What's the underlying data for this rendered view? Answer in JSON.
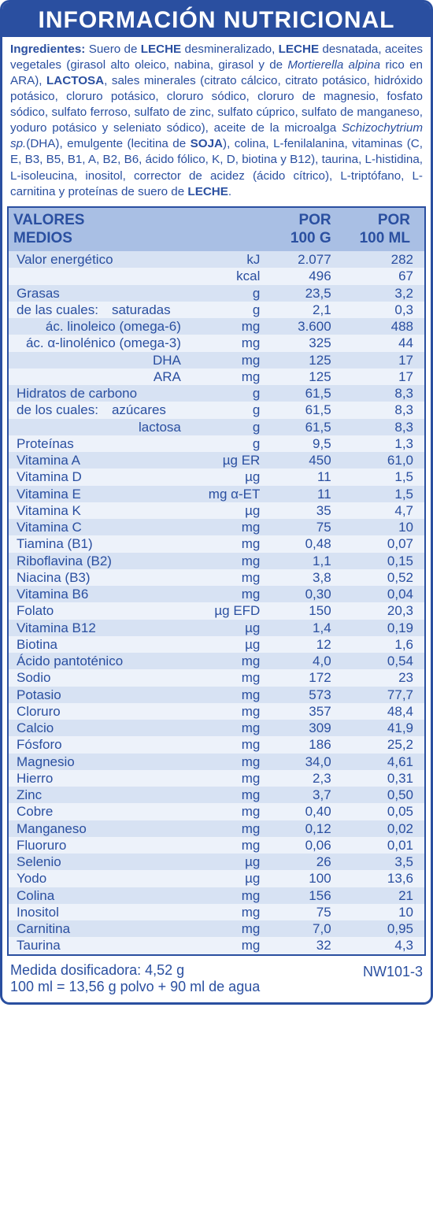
{
  "title": "INFORMACIÓN NUTRICIONAL",
  "ingredients_label": "Ingredientes:",
  "ingredients_html": "Suero de <b>LECHE</b> desmineralizado, <b>LECHE</b> desnatada, aceites vegetales (girasol alto oleico, nabina, girasol y de <i>Mortierella alpina</i> rico en ARA), <b>LACTOSA</b>, sales minerales (citrato cálcico, citrato potásico, hidróxido potásico, cloruro potásico, cloruro sódico, cloruro de magnesio, fosfato sódico, sulfato ferroso, sulfato de zinc, sulfato cúprico, sulfato de manganeso, yoduro potásico y seleniato sódico), aceite de la microalga <i>Schizochytrium sp.</i>(DHA), emulgente (lecitina de <b>SOJA</b>), colina, L-fenilalanina,  vitaminas (C, E, B3, B5, B1, A, B2, B6, ácido fólico, K, D, biotina y B12), taurina, L-histidina, L-isoleucina, inositol, corrector de acidez (ácido cítrico), L-triptófano, L-carnitina y proteínas de suero de <b>LECHE</b>.",
  "header": {
    "col1_line1": "VALORES",
    "col1_line2": "MEDIOS",
    "col3_line1": "POR",
    "col3_line2": "100 G",
    "col4_line1": "POR",
    "col4_line2": "100 ML"
  },
  "rows": [
    {
      "label": "Valor energético",
      "unit": "kJ",
      "g": "2.077",
      "ml": "282"
    },
    {
      "label": "",
      "unit": "kcal",
      "g": "496",
      "ml": "67"
    },
    {
      "label": "Grasas",
      "unit": "g",
      "g": "23,5",
      "ml": "3,2"
    },
    {
      "label": "de las cuales: saturadas",
      "unit": "g",
      "g": "2,1",
      "ml": "0,3"
    },
    {
      "label": "ác. linoleico (omega-6)",
      "indent": "sub2",
      "unit": "mg",
      "g": "3.600",
      "ml": "488",
      "align": "right"
    },
    {
      "label": "ác. α-linolénico (omega-3)",
      "indent": "sub2",
      "unit": "mg",
      "g": "325",
      "ml": "44",
      "align": "right"
    },
    {
      "label": "DHA",
      "indent": "sub2",
      "unit": "mg",
      "g": "125",
      "ml": "17",
      "align": "right"
    },
    {
      "label": "ARA",
      "indent": "sub2",
      "unit": "mg",
      "g": "125",
      "ml": "17",
      "align": "right"
    },
    {
      "label": "Hidratos de carbono",
      "unit": "g",
      "g": "61,5",
      "ml": "8,3"
    },
    {
      "label": "de los cuales: azúcares",
      "unit": "g",
      "g": "61,5",
      "ml": "8,3"
    },
    {
      "label": "lactosa",
      "indent": "sub2",
      "unit": "g",
      "g": "61,5",
      "ml": "8,3",
      "align": "right"
    },
    {
      "label": "Proteínas",
      "unit": "g",
      "g": "9,5",
      "ml": "1,3"
    },
    {
      "label": "Vitamina A",
      "unit": "µg ER",
      "g": "450",
      "ml": "61,0"
    },
    {
      "label": "Vitamina D",
      "unit": "µg",
      "g": "11",
      "ml": "1,5"
    },
    {
      "label": "Vitamina E",
      "unit": "mg α-ET",
      "g": "11",
      "ml": "1,5"
    },
    {
      "label": "Vitamina K",
      "unit": "µg",
      "g": "35",
      "ml": "4,7"
    },
    {
      "label": "Vitamina C",
      "unit": "mg",
      "g": "75",
      "ml": "10"
    },
    {
      "label": "Tiamina (B1)",
      "unit": "mg",
      "g": "0,48",
      "ml": "0,07"
    },
    {
      "label": "Riboflavina (B2)",
      "unit": "mg",
      "g": "1,1",
      "ml": "0,15"
    },
    {
      "label": "Niacina (B3)",
      "unit": "mg",
      "g": "3,8",
      "ml": "0,52"
    },
    {
      "label": "Vitamina B6",
      "unit": "mg",
      "g": "0,30",
      "ml": "0,04"
    },
    {
      "label": "Folato",
      "unit": "µg EFD",
      "g": "150",
      "ml": "20,3"
    },
    {
      "label": "Vitamina B12",
      "unit": "µg",
      "g": "1,4",
      "ml": "0,19"
    },
    {
      "label": "Biotina",
      "unit": "µg",
      "g": "12",
      "ml": "1,6"
    },
    {
      "label": "Ácido pantoténico",
      "unit": "mg",
      "g": "4,0",
      "ml": "0,54"
    },
    {
      "label": "Sodio",
      "unit": "mg",
      "g": "172",
      "ml": "23"
    },
    {
      "label": "Potasio",
      "unit": "mg",
      "g": "573",
      "ml": "77,7"
    },
    {
      "label": "Cloruro",
      "unit": "mg",
      "g": "357",
      "ml": "48,4"
    },
    {
      "label": "Calcio",
      "unit": "mg",
      "g": "309",
      "ml": "41,9"
    },
    {
      "label": "Fósforo",
      "unit": "mg",
      "g": "186",
      "ml": "25,2"
    },
    {
      "label": "Magnesio",
      "unit": "mg",
      "g": "34,0",
      "ml": "4,61"
    },
    {
      "label": "Hierro",
      "unit": "mg",
      "g": "2,3",
      "ml": "0,31"
    },
    {
      "label": "Zinc",
      "unit": "mg",
      "g": "3,7",
      "ml": "0,50"
    },
    {
      "label": "Cobre",
      "unit": "mg",
      "g": "0,40",
      "ml": "0,05"
    },
    {
      "label": "Manganeso",
      "unit": "mg",
      "g": "0,12",
      "ml": "0,02"
    },
    {
      "label": "Fluoruro",
      "unit": "mg",
      "g": "0,06",
      "ml": "0,01"
    },
    {
      "label": "Selenio",
      "unit": "µg",
      "g": "26",
      "ml": "3,5"
    },
    {
      "label": "Yodo",
      "unit": "µg",
      "g": "100",
      "ml": "13,6"
    },
    {
      "label": "Colina",
      "unit": "mg",
      "g": "156",
      "ml": "21"
    },
    {
      "label": "Inositol",
      "unit": "mg",
      "g": "75",
      "ml": "10"
    },
    {
      "label": "Carnitina",
      "unit": "mg",
      "g": "7,0",
      "ml": "0,95"
    },
    {
      "label": "Taurina",
      "unit": "mg",
      "g": "32",
      "ml": "4,3"
    }
  ],
  "footer": {
    "line1": "Medida dosificadora: 4,52 g",
    "line2": "100 ml = 13,56 g polvo + 90 ml de agua",
    "code": "NW101-3"
  },
  "colors": {
    "brand": "#2a4fa0",
    "header_bg": "#a9bfe4",
    "row_odd": "#d7e2f3",
    "row_even": "#edf2fa"
  }
}
